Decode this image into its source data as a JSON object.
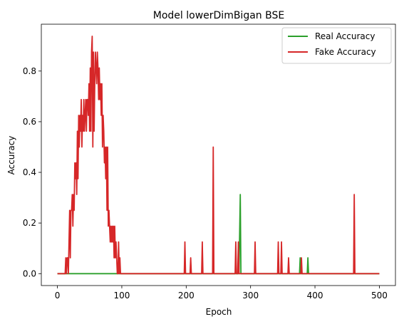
{
  "chart_data": {
    "type": "line",
    "title": "Model lowerDimBigan BSE",
    "xlabel": "Epoch",
    "ylabel": "Accuracy",
    "xlim": [
      -25,
      525
    ],
    "ylim": [
      -0.047,
      0.985
    ],
    "xticks": [
      0,
      100,
      200,
      300,
      400,
      500
    ],
    "yticks": [
      0.0,
      0.2,
      0.4,
      0.6,
      0.8
    ],
    "grid": false,
    "legend_position": "top-right",
    "series": [
      {
        "name": "Real Accuracy",
        "color": "#2ca02c",
        "points": [
          [
            0,
            0
          ],
          [
            282,
            0
          ],
          [
            284,
            0.3125
          ],
          [
            285,
            0
          ],
          [
            376,
            0
          ],
          [
            377,
            0.0625
          ],
          [
            378,
            0
          ],
          [
            388,
            0
          ],
          [
            389,
            0.0625
          ],
          [
            390,
            0
          ],
          [
            500,
            0
          ]
        ]
      },
      {
        "name": "Fake Accuracy",
        "color": "#d62728",
        "points": [
          [
            0,
            0
          ],
          [
            12,
            0
          ],
          [
            13,
            0.0625
          ],
          [
            14,
            0
          ],
          [
            15,
            0.0625
          ],
          [
            16,
            0.0625
          ],
          [
            17,
            0
          ],
          [
            18,
            0.125
          ],
          [
            19,
            0.25
          ],
          [
            20,
            0.0625
          ],
          [
            21,
            0.25
          ],
          [
            22,
            0.25
          ],
          [
            23,
            0.3125
          ],
          [
            24,
            0.1875
          ],
          [
            25,
            0.3125
          ],
          [
            26,
            0.25
          ],
          [
            27,
            0.4375
          ],
          [
            28,
            0.375
          ],
          [
            29,
            0.4375
          ],
          [
            30,
            0.3125
          ],
          [
            31,
            0.5625
          ],
          [
            32,
            0.375
          ],
          [
            33,
            0.625
          ],
          [
            34,
            0.5
          ],
          [
            35,
            0.625
          ],
          [
            36,
            0.5625
          ],
          [
            37,
            0.6875
          ],
          [
            38,
            0.5
          ],
          [
            39,
            0.625
          ],
          [
            40,
            0.5625
          ],
          [
            41,
            0.6875
          ],
          [
            42,
            0.5625
          ],
          [
            43,
            0.625
          ],
          [
            44,
            0.6875
          ],
          [
            45,
            0.5625
          ],
          [
            46,
            0.6875
          ],
          [
            47,
            0.6875
          ],
          [
            48,
            0.625
          ],
          [
            49,
            0.75
          ],
          [
            50,
            0.5625
          ],
          [
            51,
            0.8125
          ],
          [
            52,
            0.5625
          ],
          [
            53,
            0.875
          ],
          [
            54,
            0.9375
          ],
          [
            55,
            0.5
          ],
          [
            56,
            0.875
          ],
          [
            57,
            0.5625
          ],
          [
            58,
            0.75
          ],
          [
            59,
            0.875
          ],
          [
            60,
            0.8125
          ],
          [
            61,
            0.75
          ],
          [
            62,
            0.875
          ],
          [
            63,
            0.8125
          ],
          [
            64,
            0.6875
          ],
          [
            65,
            0.8125
          ],
          [
            66,
            0.6875
          ],
          [
            67,
            0.75
          ],
          [
            68,
            0.625
          ],
          [
            69,
            0.75
          ],
          [
            70,
            0.5
          ],
          [
            71,
            0.625
          ],
          [
            72,
            0.5625
          ],
          [
            73,
            0.4375
          ],
          [
            74,
            0.5
          ],
          [
            75,
            0.375
          ],
          [
            76,
            0.5
          ],
          [
            77,
            0.25
          ],
          [
            78,
            0.5
          ],
          [
            79,
            0.1875
          ],
          [
            80,
            0.25
          ],
          [
            81,
            0.1875
          ],
          [
            82,
            0.125
          ],
          [
            83,
            0.1875
          ],
          [
            84,
            0.125
          ],
          [
            85,
            0.1875
          ],
          [
            86,
            0.125
          ],
          [
            87,
            0.1875
          ],
          [
            88,
            0.0625
          ],
          [
            89,
            0.1875
          ],
          [
            90,
            0.0625
          ],
          [
            91,
            0.125
          ],
          [
            92,
            0.0625
          ],
          [
            93,
            0
          ],
          [
            94,
            0
          ],
          [
            95,
            0.125
          ],
          [
            96,
            0
          ],
          [
            97,
            0.0625
          ],
          [
            98,
            0
          ],
          [
            197,
            0
          ],
          [
            198,
            0.125
          ],
          [
            199,
            0
          ],
          [
            206,
            0
          ],
          [
            207,
            0.0625
          ],
          [
            208,
            0
          ],
          [
            224,
            0
          ],
          [
            225,
            0.125
          ],
          [
            226,
            0
          ],
          [
            241,
            0
          ],
          [
            242,
            0.5
          ],
          [
            243,
            0
          ],
          [
            276,
            0
          ],
          [
            277,
            0.125
          ],
          [
            278,
            0
          ],
          [
            280,
            0
          ],
          [
            281,
            0.125
          ],
          [
            282,
            0
          ],
          [
            306,
            0
          ],
          [
            307,
            0.125
          ],
          [
            308,
            0
          ],
          [
            342,
            0
          ],
          [
            343,
            0.125
          ],
          [
            344,
            0
          ],
          [
            347,
            0
          ],
          [
            348,
            0.125
          ],
          [
            349,
            0
          ],
          [
            358,
            0
          ],
          [
            359,
            0.0625
          ],
          [
            360,
            0
          ],
          [
            378,
            0
          ],
          [
            379,
            0.0625
          ],
          [
            380,
            0
          ],
          [
            460,
            0
          ],
          [
            461,
            0.3125
          ],
          [
            462,
            0
          ],
          [
            500,
            0
          ]
        ]
      }
    ]
  }
}
